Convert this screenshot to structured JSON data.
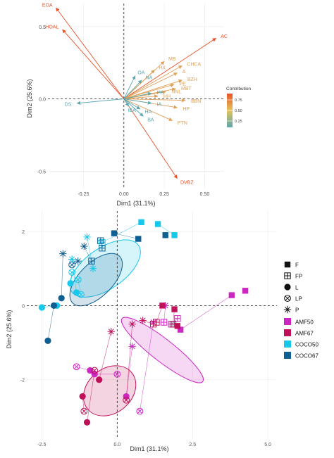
{
  "chart_data": [
    {
      "type": "scatter",
      "subtype": "pca-variable-biplot",
      "xlabel": "Dim1 (31.1%)",
      "ylabel": "Dim2 (25.6%)",
      "xlim": [
        -0.47,
        0.62
      ],
      "ylim": [
        -0.62,
        0.66
      ],
      "xticks": [
        -0.25,
        0.0,
        0.25,
        0.5
      ],
      "xtick_labels": [
        "-0.25",
        "0.00",
        "0.25",
        "0.50"
      ],
      "yticks": [
        -0.5,
        0.0,
        0.5
      ],
      "ytick_labels": [
        "-0.5",
        "0.0",
        "0.5"
      ],
      "grid": true,
      "reference_lines": {
        "x": 0,
        "y": 0,
        "style": "dashed"
      },
      "legend": {
        "title": "Contribution",
        "placement": "right",
        "type": "colorbar",
        "ticks": [
          "0.75",
          "0.50",
          "0.25"
        ],
        "range": [
          0.1,
          0.9
        ]
      },
      "colors": {
        "high": "#e8532a",
        "mid": "#e4c35a",
        "low": "#5aa7b0"
      },
      "vectors": [
        {
          "label": "EOA",
          "x": -0.42,
          "y": 0.63,
          "contrib": 0.9
        },
        {
          "label": "HOAL",
          "x": -0.38,
          "y": 0.48,
          "contrib": 0.85
        },
        {
          "label": "AC",
          "x": 0.57,
          "y": 0.42,
          "contrib": 0.82
        },
        {
          "label": "MB",
          "x": 0.25,
          "y": 0.26,
          "contrib": 0.62
        },
        {
          "label": "HX",
          "x": 0.19,
          "y": 0.2,
          "contrib": 0.6
        },
        {
          "label": "CHCA",
          "x": 0.36,
          "y": 0.23,
          "contrib": 0.58
        },
        {
          "label": "A",
          "x": 0.33,
          "y": 0.18,
          "contrib": 0.55
        },
        {
          "label": "BZH",
          "x": 0.36,
          "y": 0.13,
          "contrib": 0.55
        },
        {
          "label": "PE",
          "x": 0.31,
          "y": 0.1,
          "contrib": 0.5
        },
        {
          "label": "MBT",
          "x": 0.32,
          "y": 0.07,
          "contrib": 0.48
        },
        {
          "label": "NNL",
          "x": 0.26,
          "y": 0.05,
          "contrib": 0.45
        },
        {
          "label": "BBN",
          "x": 0.38,
          "y": -0.01,
          "contrib": 0.55
        },
        {
          "label": "HP",
          "x": 0.33,
          "y": -0.06,
          "contrib": 0.5
        },
        {
          "label": "PTN",
          "x": 0.3,
          "y": -0.15,
          "contrib": 0.62
        },
        {
          "label": "DVBZ",
          "x": 0.33,
          "y": -0.55,
          "contrib": 0.8
        },
        {
          "label": "OA",
          "x": 0.07,
          "y": 0.16,
          "contrib": 0.25
        },
        {
          "label": "NA",
          "x": 0.11,
          "y": 0.13,
          "contrib": 0.3
        },
        {
          "label": "DS",
          "x": -0.29,
          "y": -0.03,
          "contrib": 0.18
        },
        {
          "label": "IBA",
          "x": 0.03,
          "y": -0.05,
          "contrib": 0.15
        },
        {
          "label": "HA",
          "x": 0.1,
          "y": -0.07,
          "contrib": 0.2
        },
        {
          "label": "BA",
          "x": 0.12,
          "y": -0.12,
          "contrib": 0.2
        },
        {
          "label": "IA",
          "x": 0.17,
          "y": -0.03,
          "contrib": 0.35
        },
        {
          "label": "HH",
          "x": 0.21,
          "y": 0.02,
          "contrib": 0.4
        },
        {
          "label": "PP",
          "x": 0.17,
          "y": 0.04,
          "contrib": 0.38
        }
      ]
    },
    {
      "type": "scatter",
      "subtype": "pca-individuals",
      "xlabel": "Dim1 (31.1%)",
      "ylabel": "Dim2 (25.6%)",
      "xlim": [
        -3.0,
        5.3
      ],
      "ylim": [
        -3.6,
        2.55
      ],
      "xticks": [
        -2.5,
        0.0,
        2.5,
        5.0
      ],
      "xtick_labels": [
        "-2.5",
        "0.0",
        "2.5",
        "5.0"
      ],
      "yticks": [
        -2,
        0,
        2
      ],
      "ytick_labels": [
        "-2",
        "0",
        "2"
      ],
      "grid": true,
      "reference_lines": {
        "x": 0,
        "y": 0,
        "style": "dashed"
      },
      "legend": {
        "placement": "right",
        "shapes": [
          {
            "label": "F",
            "shape": "square"
          },
          {
            "label": "FP",
            "shape": "square-plus"
          },
          {
            "label": "L",
            "shape": "circle"
          },
          {
            "label": "LP",
            "shape": "circle-x"
          },
          {
            "label": "P",
            "shape": "asterisk"
          }
        ],
        "groups": [
          {
            "label": "AMF50",
            "color": "#cc27c2"
          },
          {
            "label": "AMF67",
            "color": "#c0105a"
          },
          {
            "label": "COCO50",
            "color": "#18c8ea"
          },
          {
            "label": "COCO67",
            "color": "#0f5f93"
          }
        ]
      },
      "series": [
        {
          "name": "COCO50",
          "color": "#18c8ea",
          "points": [
            {
              "shape": "F",
              "x": 0.8,
              "y": 2.25
            },
            {
              "shape": "F",
              "x": 1.35,
              "y": 2.2
            },
            {
              "shape": "F",
              "x": 1.9,
              "y": 1.9
            },
            {
              "shape": "FP",
              "x": -0.5,
              "y": 1.7
            },
            {
              "shape": "L",
              "x": -2.5,
              "y": -0.05
            },
            {
              "shape": "L",
              "x": -2.0,
              "y": 0.0
            },
            {
              "shape": "L",
              "x": -1.55,
              "y": 0.6
            },
            {
              "shape": "L",
              "x": -1.35,
              "y": 0.35
            },
            {
              "shape": "LP",
              "x": -1.5,
              "y": 0.9
            },
            {
              "shape": "LP",
              "x": -1.3,
              "y": 0.7
            },
            {
              "shape": "LP",
              "x": -1.2,
              "y": 0.3
            },
            {
              "shape": "P",
              "x": -1.0,
              "y": 1.85
            },
            {
              "shape": "P",
              "x": -0.8,
              "y": 1.0
            },
            {
              "shape": "P",
              "x": -1.5,
              "y": 1.25
            }
          ],
          "ellipse": {
            "cx": -0.4,
            "cy": 1.0,
            "rx": 2.7,
            "ry": 0.55,
            "angle_deg": -35
          }
        },
        {
          "name": "COCO67",
          "color": "#0f5f93",
          "points": [
            {
              "shape": "F",
              "x": -0.1,
              "y": 1.95
            },
            {
              "shape": "F",
              "x": 0.7,
              "y": 1.8
            },
            {
              "shape": "F",
              "x": 1.6,
              "y": 1.9
            },
            {
              "shape": "FP",
              "x": -0.55,
              "y": 1.75
            },
            {
              "shape": "FP",
              "x": -0.5,
              "y": 1.55
            },
            {
              "shape": "FP",
              "x": -0.85,
              "y": 1.2
            },
            {
              "shape": "L",
              "x": -2.3,
              "y": -0.95
            },
            {
              "shape": "L",
              "x": -2.1,
              "y": 0.0
            },
            {
              "shape": "L",
              "x": -1.85,
              "y": 0.2
            },
            {
              "shape": "LP",
              "x": -1.5,
              "y": 1.1
            },
            {
              "shape": "P",
              "x": -1.8,
              "y": 1.4
            },
            {
              "shape": "P",
              "x": -1.1,
              "y": 1.6
            },
            {
              "shape": "P",
              "x": -1.3,
              "y": 1.2
            }
          ],
          "ellipse": {
            "cx": -0.7,
            "cy": 0.7,
            "rx": 2.2,
            "ry": 0.45,
            "angle_deg": -45
          }
        },
        {
          "name": "AMF50",
          "color": "#cc27c2",
          "points": [
            {
              "shape": "F",
              "x": 3.8,
              "y": 0.28
            },
            {
              "shape": "F",
              "x": 4.25,
              "y": 0.4
            },
            {
              "shape": "F",
              "x": 2.1,
              "y": -0.65
            },
            {
              "shape": "FP",
              "x": 1.55,
              "y": -0.45
            },
            {
              "shape": "FP",
              "x": 1.8,
              "y": -0.5
            },
            {
              "shape": "FP",
              "x": 2.0,
              "y": -0.35
            },
            {
              "shape": "L",
              "x": -0.9,
              "y": -1.75
            },
            {
              "shape": "L",
              "x": -0.75,
              "y": -1.85
            },
            {
              "shape": "L",
              "x": 0.3,
              "y": -2.45
            },
            {
              "shape": "LP",
              "x": -1.35,
              "y": -1.65
            },
            {
              "shape": "LP",
              "x": 0.0,
              "y": -1.85
            },
            {
              "shape": "LP",
              "x": 0.75,
              "y": -2.85
            },
            {
              "shape": "P",
              "x": 0.5,
              "y": -1.1
            },
            {
              "shape": "P",
              "x": 1.6,
              "y": 0.0
            },
            {
              "shape": "P",
              "x": 1.2,
              "y": -0.45
            }
          ],
          "ellipse": {
            "cx": 1.5,
            "cy": -1.2,
            "rx": 3.4,
            "ry": 0.3,
            "angle_deg": 38
          }
        },
        {
          "name": "AMF67",
          "color": "#c0105a",
          "points": [
            {
              "shape": "F",
              "x": 1.5,
              "y": 0.0
            },
            {
              "shape": "F",
              "x": 1.9,
              "y": -0.1
            },
            {
              "shape": "F",
              "x": 2.0,
              "y": -0.55
            },
            {
              "shape": "FP",
              "x": 1.2,
              "y": -0.5
            },
            {
              "shape": "FP",
              "x": 1.3,
              "y": -0.45
            },
            {
              "shape": "FP",
              "x": 1.85,
              "y": -0.5
            },
            {
              "shape": "L",
              "x": -1.0,
              "y": -3.15
            },
            {
              "shape": "L",
              "x": -1.15,
              "y": -2.45
            },
            {
              "shape": "L",
              "x": -0.6,
              "y": -2.0
            },
            {
              "shape": "LP",
              "x": -1.1,
              "y": -2.85
            },
            {
              "shape": "LP",
              "x": 0.3,
              "y": -2.55
            },
            {
              "shape": "LP",
              "x": -0.75,
              "y": -1.75
            },
            {
              "shape": "P",
              "x": 0.85,
              "y": -0.4
            },
            {
              "shape": "P",
              "x": 0.5,
              "y": -0.5
            },
            {
              "shape": "P",
              "x": -0.2,
              "y": -0.7
            }
          ],
          "ellipse": {
            "cx": -0.25,
            "cy": -2.3,
            "rx": 1.9,
            "ry": 0.6,
            "angle_deg": -40
          }
        }
      ]
    }
  ]
}
